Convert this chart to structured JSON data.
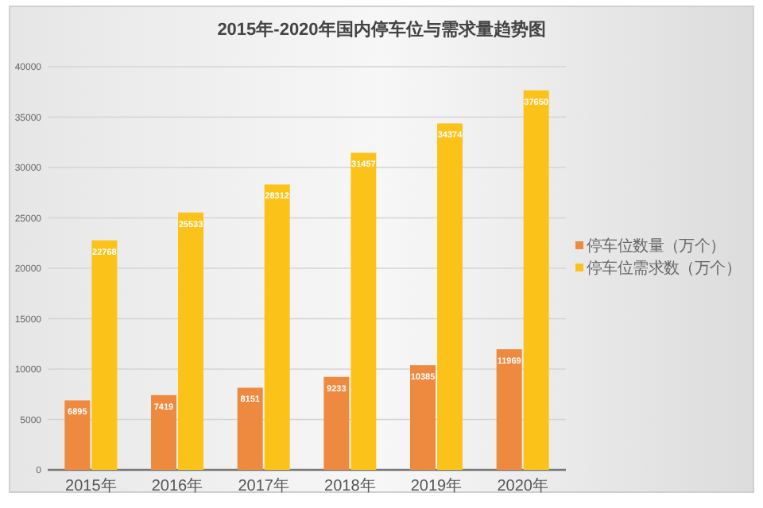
{
  "chart_data": {
    "type": "bar",
    "title": "2015年-2020年国内停车位与需求量趋势图",
    "categories": [
      "2015年",
      "2016年",
      "2017年",
      "2018年",
      "2019年",
      "2020年"
    ],
    "series": [
      {
        "name": "停车位数量（万个）",
        "color": "#ed8a3f",
        "values": [
          6895,
          7419,
          8151,
          9233,
          10385,
          11969
        ]
      },
      {
        "name": "停车位需求数（万个）",
        "color": "#fbc31a",
        "values": [
          22768,
          25533,
          28312,
          31457,
          34374,
          37650
        ]
      }
    ],
    "ylim": [
      0,
      40000
    ],
    "yticks": [
      0,
      5000,
      10000,
      15000,
      20000,
      25000,
      30000,
      35000,
      40000
    ],
    "grid": "y",
    "legend": "right",
    "data_labels": true
  }
}
